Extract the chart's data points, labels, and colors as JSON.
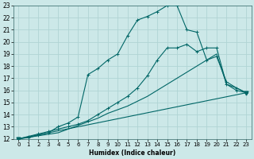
{
  "xlabel": "Humidex (Indice chaleur)",
  "xlim": [
    -0.5,
    23.5
  ],
  "ylim": [
    12,
    23
  ],
  "xticks": [
    0,
    1,
    2,
    3,
    4,
    5,
    6,
    7,
    8,
    9,
    10,
    11,
    12,
    13,
    14,
    15,
    16,
    17,
    18,
    19,
    20,
    21,
    22,
    23
  ],
  "yticks": [
    12,
    13,
    14,
    15,
    16,
    17,
    18,
    19,
    20,
    21,
    22,
    23
  ],
  "bg_color": "#cce8e8",
  "line_color": "#006666",
  "grid_color": "#b0d4d4",
  "line1_x": [
    0,
    1,
    2,
    3,
    4,
    5,
    6,
    7,
    8,
    9,
    10,
    11,
    12,
    13,
    14,
    15,
    16,
    17,
    18,
    19,
    20,
    21,
    22,
    23
  ],
  "line1_y": [
    12,
    12.2,
    12.4,
    12.6,
    12.8,
    13.0,
    13.2,
    13.5,
    14.0,
    14.5,
    15.0,
    15.5,
    16.2,
    17.2,
    18.5,
    19.5,
    19.5,
    19.8,
    19.2,
    19.5,
    19.5,
    16.5,
    16.0,
    15.8
  ],
  "line2_x": [
    0,
    1,
    2,
    3,
    4,
    5,
    6,
    7,
    8,
    9,
    10,
    11,
    12,
    13,
    14,
    15,
    16,
    17,
    18,
    19,
    20,
    21,
    22,
    23
  ],
  "line2_y": [
    12,
    12.1,
    12.3,
    12.5,
    13.0,
    13.3,
    13.8,
    17.3,
    17.8,
    18.5,
    19.0,
    20.5,
    21.8,
    22.1,
    22.5,
    23.0,
    23.0,
    21.0,
    20.8,
    18.5,
    18.8,
    16.7,
    16.2,
    15.8
  ],
  "line3_x": [
    0,
    4,
    5,
    6,
    7,
    8,
    9,
    10,
    11,
    12,
    13,
    14,
    15,
    16,
    17,
    18,
    19,
    20,
    21,
    22,
    23
  ],
  "line3_y": [
    12,
    12.5,
    12.8,
    13.1,
    13.4,
    13.7,
    14.1,
    14.4,
    14.7,
    15.1,
    15.5,
    16.0,
    16.5,
    17.0,
    17.5,
    18.0,
    18.5,
    19.0,
    16.5,
    16.2,
    15.8
  ],
  "line4_x": [
    0,
    23
  ],
  "line4_y": [
    12,
    15.8
  ]
}
